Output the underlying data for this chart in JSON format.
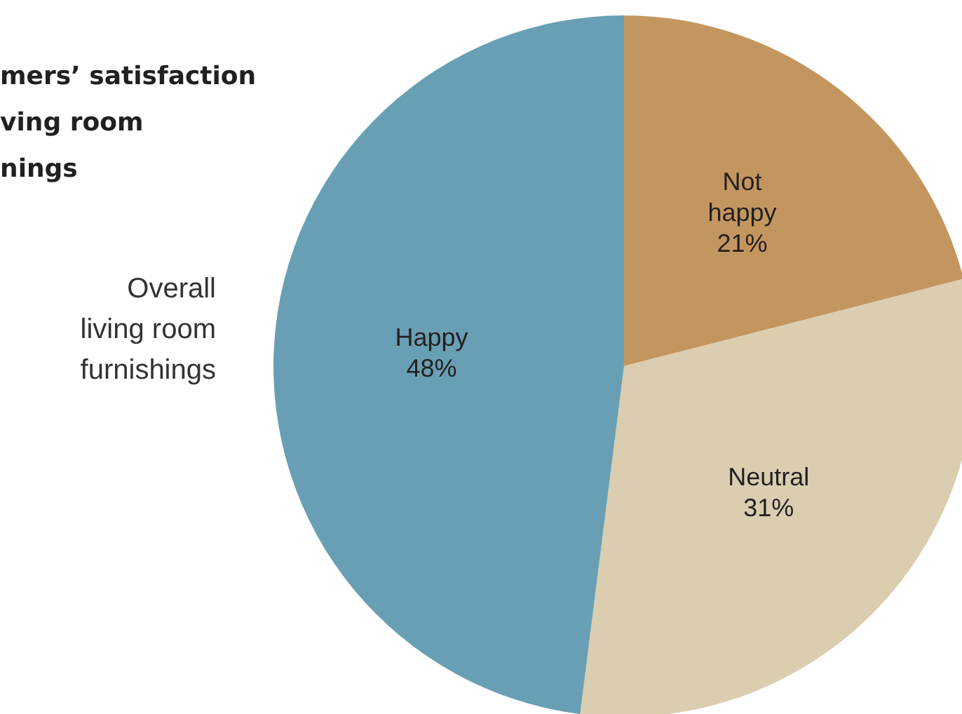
{
  "chart_data": {
    "type": "pie",
    "title": "mers’ satisfaction\nving room\nnings",
    "subtitle": "Overall\nliving room\nfurnishings",
    "categories": [
      "Not happy",
      "Neutral",
      "Happy"
    ],
    "values": [
      21,
      31,
      48
    ],
    "value_labels": [
      "21%",
      "31%",
      "48%"
    ],
    "colors": [
      "#c4965f",
      "#dacdb0",
      "#699fb4"
    ]
  }
}
